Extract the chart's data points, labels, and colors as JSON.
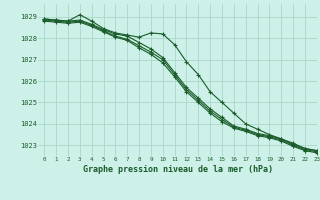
{
  "background_color": "#cdf0e8",
  "grid_color": "#a8d8c8",
  "line_color": "#1a5c2a",
  "title": "Graphe pression niveau de la mer (hPa)",
  "xlim": [
    -0.5,
    23
  ],
  "ylim": [
    1022.5,
    1029.6
  ],
  "yticks": [
    1023,
    1024,
    1025,
    1026,
    1027,
    1028,
    1029
  ],
  "xticks": [
    0,
    1,
    2,
    3,
    4,
    5,
    6,
    7,
    8,
    9,
    10,
    11,
    12,
    13,
    14,
    15,
    16,
    17,
    18,
    19,
    20,
    21,
    22,
    23
  ],
  "series": [
    [
      1028.9,
      1028.85,
      1028.8,
      1029.1,
      1028.8,
      1028.45,
      1028.25,
      1028.15,
      1028.05,
      1028.25,
      1028.2,
      1027.7,
      1026.9,
      1026.3,
      1025.5,
      1025.0,
      1024.5,
      1024.0,
      1023.75,
      1023.5,
      1023.3,
      1023.1,
      1022.85,
      1022.75
    ],
    [
      1028.9,
      1028.85,
      1028.8,
      1028.85,
      1028.65,
      1028.4,
      1028.2,
      1028.1,
      1027.8,
      1027.5,
      1027.1,
      1026.4,
      1025.7,
      1025.2,
      1024.7,
      1024.3,
      1023.9,
      1023.75,
      1023.55,
      1023.45,
      1023.3,
      1023.05,
      1022.85,
      1022.75
    ],
    [
      1028.85,
      1028.8,
      1028.75,
      1028.8,
      1028.6,
      1028.35,
      1028.1,
      1027.95,
      1027.65,
      1027.35,
      1027.0,
      1026.3,
      1025.6,
      1025.1,
      1024.6,
      1024.2,
      1023.85,
      1023.7,
      1023.5,
      1023.4,
      1023.25,
      1023.0,
      1022.8,
      1022.7
    ],
    [
      1028.8,
      1028.75,
      1028.7,
      1028.75,
      1028.55,
      1028.3,
      1028.05,
      1027.9,
      1027.55,
      1027.25,
      1026.85,
      1026.2,
      1025.5,
      1025.0,
      1024.5,
      1024.1,
      1023.8,
      1023.65,
      1023.45,
      1023.35,
      1023.2,
      1022.95,
      1022.75,
      1022.65
    ]
  ]
}
